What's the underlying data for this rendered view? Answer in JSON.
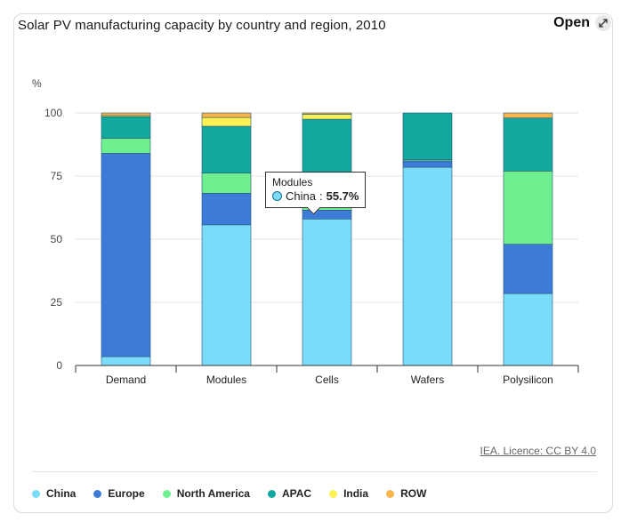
{
  "header": {
    "title": "Solar PV manufacturing capacity by country and region, 2010",
    "open_label": "Open",
    "open_icon": "expand-icon"
  },
  "credit": "IEA. Licence: CC BY 4.0",
  "tooltip": {
    "category": "Modules",
    "series": "China",
    "value": "55.7%"
  },
  "chart_data": {
    "type": "bar",
    "stacked": true,
    "ylabel": "%",
    "ylim": [
      0,
      100
    ],
    "yticks": [
      0,
      25,
      50,
      75,
      100
    ],
    "grid": true,
    "legend_position": "bottom-left",
    "categories": [
      "Demand",
      "Modules",
      "Cells",
      "Wafers",
      "Polysilicon"
    ],
    "series": [
      {
        "name": "China",
        "color": "#79dcfb",
        "values": [
          3.5,
          55.7,
          58,
          78.5,
          28.5
        ]
      },
      {
        "name": "Europe",
        "color": "#3c7cd8",
        "values": [
          80.5,
          12.5,
          3.5,
          2.5,
          19.5
        ]
      },
      {
        "name": "North America",
        "color": "#6ff090",
        "values": [
          6,
          8,
          1,
          0.5,
          29
        ]
      },
      {
        "name": "APAC",
        "color": "#11a8a0",
        "values": [
          8.5,
          18.5,
          35,
          18.5,
          21
        ]
      },
      {
        "name": "India",
        "color": "#fdf155",
        "values": [
          0.5,
          3.5,
          2,
          0,
          0
        ]
      },
      {
        "name": "ROW",
        "color": "#f8b54c",
        "values": [
          1,
          1.8,
          0.5,
          0,
          2
        ]
      }
    ]
  }
}
